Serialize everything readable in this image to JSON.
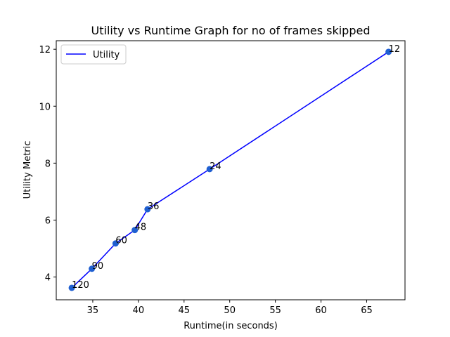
{
  "chart_data": {
    "type": "line",
    "title": "Utility vs Runtime Graph for no of frames skipped",
    "xlabel": "Runtime(in seconds)",
    "ylabel": "Utility Metric",
    "xlim": [
      31.0,
      69.2
    ],
    "ylim": [
      3.2,
      12.3
    ],
    "xticks": [
      35,
      40,
      45,
      50,
      55,
      60,
      65
    ],
    "yticks": [
      4,
      6,
      8,
      10,
      12
    ],
    "grid": false,
    "legend_position": "top-left",
    "line_color": "#0000ff",
    "marker_color": "#1f5fd1",
    "series": [
      {
        "name": "Utility",
        "points": [
          {
            "x": 32.7,
            "y": 3.62,
            "label": "120"
          },
          {
            "x": 34.9,
            "y": 4.29,
            "label": "90"
          },
          {
            "x": 37.5,
            "y": 5.18,
            "label": "60"
          },
          {
            "x": 39.6,
            "y": 5.65,
            "label": "48"
          },
          {
            "x": 41.0,
            "y": 6.38,
            "label": "36"
          },
          {
            "x": 47.8,
            "y": 7.79,
            "label": "24"
          },
          {
            "x": 67.4,
            "y": 11.91,
            "label": "12"
          }
        ]
      }
    ]
  }
}
